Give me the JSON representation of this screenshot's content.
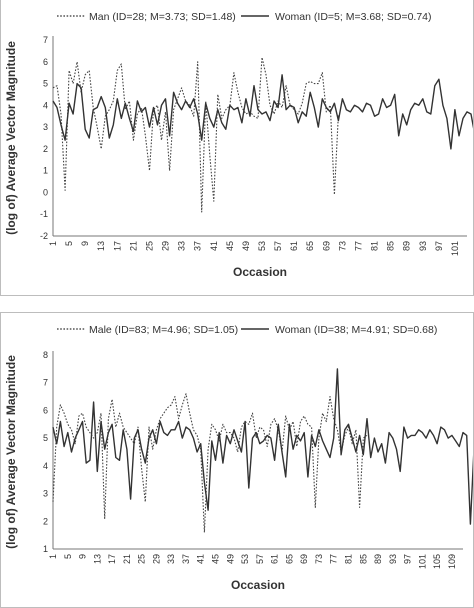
{
  "chart_data": [
    {
      "type": "line",
      "xlabel": "Occasion",
      "ylabel": "(log of) Average Vector Magnitude",
      "ylim": [
        -2,
        7
      ],
      "yticks": [
        "-2",
        "-1",
        "0",
        "1",
        "2",
        "3",
        "4",
        "5",
        "6",
        "7"
      ],
      "xtick_labels": [
        "1",
        "5",
        "9",
        "13",
        "17",
        "21",
        "25",
        "29",
        "33",
        "37",
        "41",
        "45",
        "49",
        "53",
        "57",
        "61",
        "65",
        "69",
        "73",
        "77",
        "81",
        "85",
        "89",
        "93",
        "97",
        "101"
      ],
      "grid": "none",
      "legend": "top",
      "series": [
        {
          "name": "Man (ID=28; M=3.73; SD=1.48)",
          "style": "dotted",
          "values": [
            4.8,
            4.9,
            3.6,
            0.1,
            5.6,
            5.0,
            6.0,
            4.6,
            5.4,
            5.6,
            3.9,
            3.0,
            2.0,
            3.5,
            3.8,
            4.2,
            5.6,
            5.9,
            3.8,
            4.2,
            2.4,
            3.6,
            3.9,
            2.6,
            1.0,
            3.8,
            4.0,
            2.4,
            3.7,
            1.0,
            3.8,
            4.3,
            4.8,
            4.2,
            4.0,
            3.5,
            6.0,
            -0.9,
            4.2,
            1.7,
            -0.4,
            4.5,
            3.4,
            3.8,
            4.0,
            5.5,
            4.6,
            3.9,
            3.6,
            3.7,
            3.5,
            3.4,
            6.2,
            5.4,
            4.0,
            3.6,
            4.2,
            3.9,
            4.9,
            4.0,
            3.8,
            3.6,
            4.1,
            5.0,
            5.1,
            5.0,
            5.0,
            5.5,
            3.7,
            4.0,
            -0.1,
            3.6
          ]
        },
        {
          "name": "Woman (ID=5; M=3.68; SD=0.74)",
          "style": "solid",
          "values": [
            4.2,
            3.9,
            3.1,
            2.4,
            4.1,
            3.6,
            5.0,
            4.8,
            2.9,
            2.5,
            3.8,
            3.9,
            4.4,
            3.9,
            2.5,
            3.1,
            4.3,
            3.4,
            4.1,
            3.4,
            2.8,
            4.2,
            3.7,
            3.9,
            3.0,
            3.9,
            3.1,
            4.0,
            4.3,
            2.6,
            4.6,
            4.1,
            3.8,
            4.2,
            3.9,
            4.3,
            3.6,
            2.4,
            4.1,
            3.4,
            3.0,
            3.8,
            3.2,
            2.9,
            4.0,
            3.8,
            3.9,
            3.2,
            4.3,
            3.5,
            4.9,
            3.8,
            3.6,
            3.7,
            3.3,
            4.2,
            3.9,
            5.4,
            3.8,
            4.0,
            3.9,
            3.2,
            3.7,
            3.5,
            4.6,
            3.9,
            3.0,
            4.3,
            3.9,
            3.7,
            4.1,
            3.3,
            4.3,
            3.8,
            3.7,
            4.0,
            3.9,
            3.7,
            4.1,
            4.0,
            3.5,
            3.6,
            4.3,
            3.9,
            4.0,
            4.5,
            2.6,
            3.6,
            3.1,
            3.8,
            4.1,
            4.0,
            4.3,
            3.7,
            3.6,
            4.9,
            5.2,
            4.0,
            3.4,
            2.0,
            3.8,
            2.6,
            3.4,
            3.7,
            3.6,
            2.6,
            2.4,
            4.2
          ]
        }
      ]
    },
    {
      "type": "line",
      "xlabel": "Occasion",
      "ylabel": "(log of) Average Vector Magnitude",
      "ylim": [
        1,
        8
      ],
      "yticks": [
        "1",
        "2",
        "3",
        "4",
        "5",
        "6",
        "7",
        "8"
      ],
      "xtick_labels": [
        "1",
        "5",
        "9",
        "13",
        "17",
        "21",
        "25",
        "29",
        "33",
        "37",
        "41",
        "45",
        "49",
        "53",
        "57",
        "61",
        "65",
        "69",
        "73",
        "77",
        "81",
        "85",
        "89",
        "93",
        "97",
        "101",
        "105",
        "109"
      ],
      "grid": "none",
      "legend": "top",
      "series": [
        {
          "name": "Male (ID=83; M=4.96; SD=1.05)",
          "style": "dotted",
          "values": [
            2.7,
            5.4,
            6.2,
            5.9,
            5.5,
            5.3,
            4.8,
            5.8,
            5.9,
            5.4,
            5.2,
            5.0,
            5.2,
            5.9,
            2.1,
            5.7,
            6.4,
            5.4,
            5.9,
            5.4,
            5.2,
            5.0,
            4.8,
            5.4,
            3.9,
            2.7,
            5.4,
            4.6,
            5.3,
            5.7,
            5.9,
            6.1,
            6.2,
            6.5,
            5.7,
            6.2,
            6.6,
            5.9,
            5.3,
            5.1,
            4.6,
            1.6,
            4.6,
            5.5,
            5.3,
            4.9,
            5.5,
            5.2,
            5.2,
            5.0,
            4.5,
            5.4,
            5.6,
            5.5,
            5.9,
            5.0,
            5.4,
            5.3,
            4.7,
            5.5,
            5.7,
            5.3,
            4.5,
            5.8,
            5.3,
            5.6,
            4.7,
            5.6,
            5.8,
            5.5,
            5.4,
            2.5,
            5.0,
            5.9,
            5.6,
            6.5,
            5.7,
            5.3,
            4.5,
            5.1,
            5.4,
            4.8,
            5.3,
            2.5,
            5.0,
            5.1
          ]
        },
        {
          "name": "Woman (ID=38; M=4.91; SD=0.68)",
          "style": "solid",
          "values": [
            5.4,
            4.8,
            5.6,
            4.7,
            5.2,
            4.5,
            5.0,
            5.3,
            5.6,
            4.1,
            4.2,
            6.3,
            3.8,
            5.6,
            4.6,
            5.2,
            5.5,
            4.3,
            4.2,
            5.3,
            4.6,
            2.8,
            5.0,
            5.3,
            4.6,
            4.1,
            5.0,
            5.3,
            4.8,
            5.6,
            5.2,
            5.1,
            5.3,
            5.3,
            5.6,
            5.0,
            5.4,
            5.3,
            5.0,
            4.5,
            4.8,
            3.4,
            2.4,
            4.9,
            4.2,
            5.2,
            4.1,
            5.1,
            4.8,
            5.3,
            4.9,
            4.5,
            5.6,
            3.2,
            5.0,
            5.2,
            4.8,
            4.9,
            5.1,
            5.0,
            4.2,
            5.5,
            4.5,
            3.6,
            5.5,
            4.6,
            5.1,
            4.9,
            5.2,
            3.6,
            5.1,
            4.7,
            5.3,
            4.9,
            4.6,
            4.3,
            5.0,
            7.5,
            4.4,
            5.3,
            5.5,
            5.0,
            4.5,
            5.1,
            4.4,
            5.7,
            4.3,
            5.0,
            4.5,
            4.8,
            4.1,
            5.2,
            5.0,
            4.6,
            3.8,
            5.4,
            5.0,
            5.1,
            5.1,
            5.3,
            5.2,
            5.0,
            5.3,
            5.1,
            4.8,
            5.4,
            5.3,
            5.0,
            5.1,
            4.9,
            4.7,
            5.2,
            5.1,
            1.9,
            4.7
          ]
        }
      ]
    }
  ]
}
